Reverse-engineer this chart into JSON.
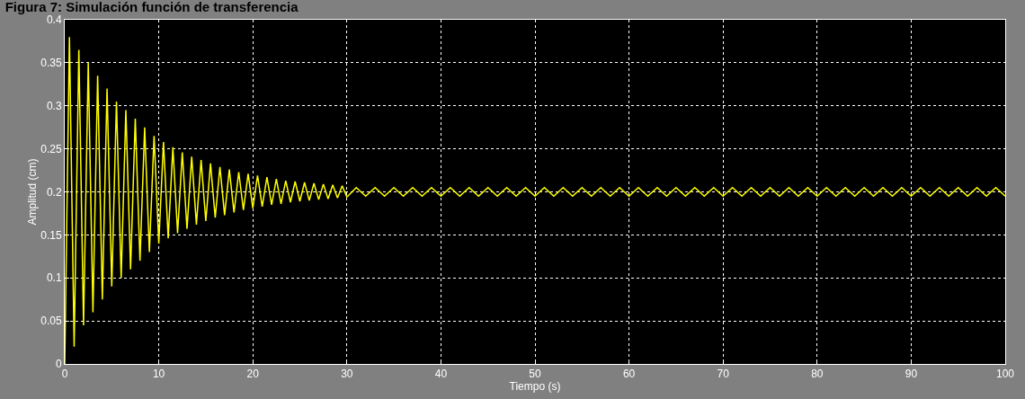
{
  "chart_data": {
    "type": "line",
    "title": "Figura 7: Simulación función de transferencia",
    "xlabel": "Tiempo (s)",
    "ylabel": "Amplitud (cm)",
    "x": [
      0,
      0.5,
      1,
      1.5,
      2,
      2.5,
      3,
      3.5,
      4,
      4.5,
      5,
      5.5,
      6,
      6.5,
      7,
      7.5,
      8,
      8.5,
      9,
      9.5,
      10,
      10.5,
      11,
      11.5,
      12,
      12.5,
      13,
      13.5,
      14,
      14.5,
      15,
      15.5,
      16,
      16.5,
      17,
      17.5,
      18,
      18.5,
      19,
      19.5,
      20,
      20.5,
      21,
      21.5,
      22,
      22.5,
      23,
      23.5,
      24,
      24.5,
      25,
      25.5,
      26,
      26.5,
      27,
      27.5,
      28,
      28.5,
      29,
      29.5,
      30,
      31,
      32,
      33,
      34,
      35,
      36,
      37,
      38,
      39,
      40,
      41,
      42,
      43,
      44,
      45,
      46,
      47,
      48,
      49,
      50,
      51,
      52,
      53,
      54,
      55,
      56,
      57,
      58,
      59,
      60,
      61,
      62,
      63,
      64,
      65,
      66,
      67,
      68,
      69,
      70,
      71,
      72,
      73,
      74,
      75,
      76,
      77,
      78,
      79,
      80,
      81,
      82,
      83,
      84,
      85,
      86,
      87,
      88,
      89,
      90,
      91,
      92,
      93,
      94,
      95,
      96,
      97,
      98,
      99,
      100
    ],
    "series": [
      {
        "color": "#ffff00",
        "values": [
          0,
          0.38,
          0.02,
          0.365,
          0.045,
          0.35,
          0.06,
          0.335,
          0.075,
          0.32,
          0.09,
          0.305,
          0.1,
          0.295,
          0.11,
          0.285,
          0.12,
          0.275,
          0.13,
          0.265,
          0.14,
          0.258,
          0.146,
          0.252,
          0.152,
          0.246,
          0.157,
          0.241,
          0.162,
          0.237,
          0.166,
          0.233,
          0.17,
          0.229,
          0.173,
          0.226,
          0.176,
          0.223,
          0.179,
          0.221,
          0.181,
          0.219,
          0.183,
          0.217,
          0.185,
          0.215,
          0.186,
          0.213,
          0.188,
          0.212,
          0.189,
          0.211,
          0.19,
          0.21,
          0.191,
          0.209,
          0.192,
          0.208,
          0.193,
          0.207,
          0.194,
          0.205,
          0.195,
          0.205,
          0.195,
          0.205,
          0.195,
          0.205,
          0.195,
          0.205,
          0.195,
          0.205,
          0.195,
          0.205,
          0.195,
          0.205,
          0.195,
          0.205,
          0.195,
          0.205,
          0.195,
          0.205,
          0.195,
          0.205,
          0.195,
          0.205,
          0.195,
          0.205,
          0.195,
          0.205,
          0.195,
          0.205,
          0.195,
          0.205,
          0.195,
          0.205,
          0.195,
          0.205,
          0.195,
          0.205,
          0.195,
          0.205,
          0.195,
          0.205,
          0.195,
          0.205,
          0.195,
          0.205,
          0.195,
          0.205,
          0.195,
          0.205,
          0.195,
          0.205,
          0.195,
          0.205,
          0.195,
          0.205,
          0.195,
          0.205,
          0.195,
          0.205,
          0.195,
          0.205,
          0.195,
          0.205,
          0.195,
          0.205,
          0.195,
          0.205,
          0.195
        ]
      }
    ],
    "xlim": [
      0,
      100
    ],
    "xticks": [
      0,
      10,
      20,
      30,
      40,
      50,
      60,
      70,
      80,
      90,
      100
    ],
    "ylim": [
      0,
      0.4
    ],
    "yticks": [
      0,
      0.05,
      0.1,
      0.15,
      0.2,
      0.25,
      0.3,
      0.35,
      0.4
    ],
    "grid": true,
    "line_style": "solid",
    "marker": "none"
  }
}
